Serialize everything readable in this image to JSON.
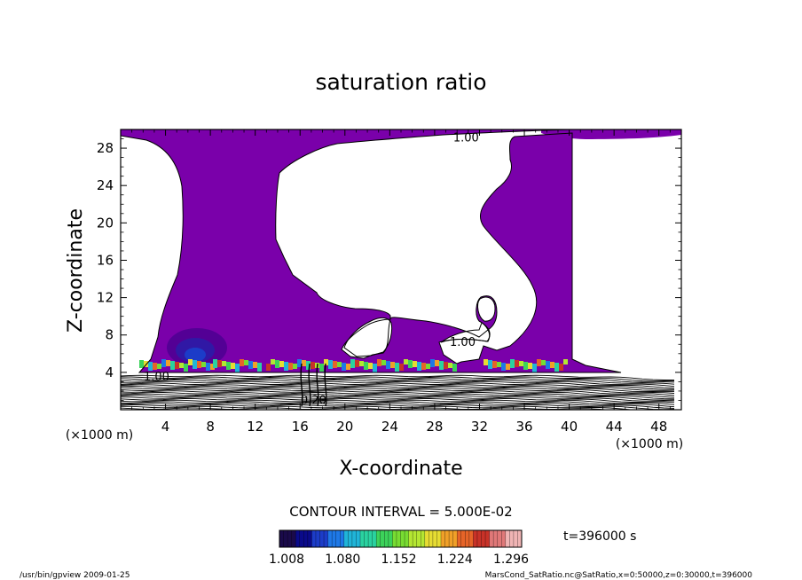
{
  "chart_data": {
    "type": "contour",
    "title": "saturation ratio",
    "xlabel": "X-coordinate",
    "ylabel": "Z-coordinate",
    "x_unit": "(×1000 m)",
    "y_unit": "(×1000 m)",
    "xlim": [
      0,
      50
    ],
    "ylim": [
      0,
      30
    ],
    "x_ticks": [
      4,
      8,
      12,
      16,
      20,
      24,
      28,
      32,
      36,
      40,
      44,
      48
    ],
    "y_ticks": [
      4,
      8,
      12,
      16,
      20,
      24,
      28
    ],
    "contour_labels": [
      {
        "text": "1.00",
        "x": 30.8,
        "z": 29.2
      },
      {
        "text": "1.00",
        "x": 30.5,
        "z": 7.3
      },
      {
        "text": "1.00",
        "x": 3.2,
        "z": 3.6
      },
      {
        "text": "0.20",
        "x": 17.2,
        "z": 1.1
      }
    ],
    "contour_interval": "CONTOUR INTERVAL = 5.000E-02",
    "colorbar": {
      "ticks": [
        "1.008",
        "1.080",
        "1.152",
        "1.224",
        "1.296"
      ],
      "colors": [
        "#1a0a4a",
        "#0a0a8a",
        "#1c3cc8",
        "#1e78e6",
        "#20b4d8",
        "#2ad2a0",
        "#3cd25a",
        "#78dc32",
        "#b4e632",
        "#e6dc32",
        "#f0a028",
        "#e66428",
        "#c83228",
        "#e07878",
        "#f0b4b4"
      ]
    },
    "time_label": "t=396000 s",
    "supersaturated_color": "#7a00aa"
  },
  "footer": {
    "left": "/usr/bin/gpview   2009-01-25",
    "right": "MarsCond_SatRatio.nc@SatRatio,x=0:50000,z=0:30000,t=396000"
  }
}
